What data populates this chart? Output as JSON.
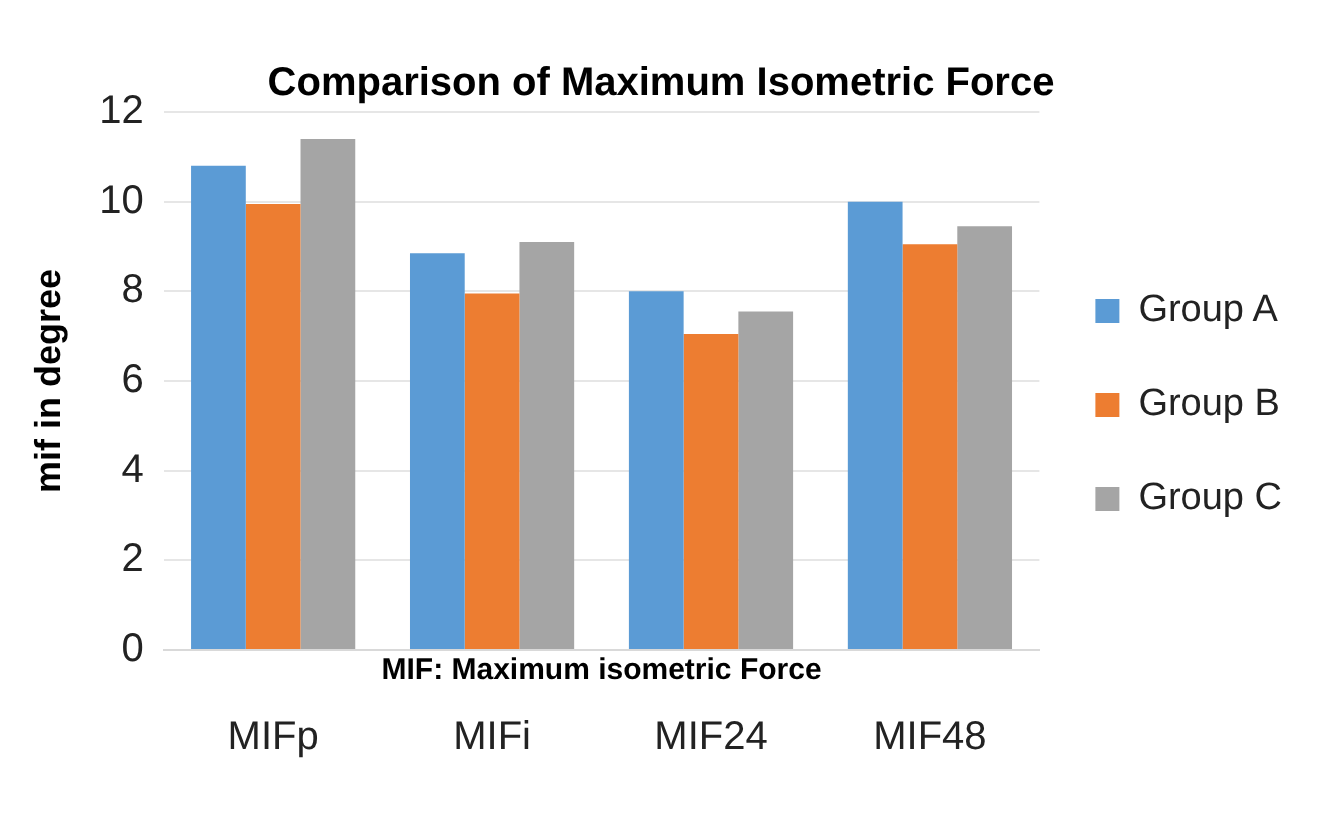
{
  "chart_data": {
    "type": "bar",
    "title": "Comparison of Maximum Isometric Force",
    "xlabel": "MIF: Maximum isometric Force",
    "ylabel": "mif in degree",
    "categories": [
      "MIFp",
      "MIFi",
      "MIF24",
      "MIF48"
    ],
    "series": [
      {
        "name": "Group A",
        "color": "#5b9bd5",
        "values": [
          10.8,
          8.85,
          8.0,
          10.0
        ]
      },
      {
        "name": "Group B",
        "color": "#ed7d31",
        "values": [
          9.95,
          7.95,
          7.05,
          9.05
        ]
      },
      {
        "name": "Group C",
        "color": "#a5a5a5",
        "values": [
          11.4,
          9.1,
          7.55,
          9.45
        ]
      }
    ],
    "ylim": [
      0,
      12
    ],
    "yticks": [
      0,
      2,
      4,
      6,
      8,
      10,
      12
    ],
    "grid": "y",
    "legend": "right"
  }
}
